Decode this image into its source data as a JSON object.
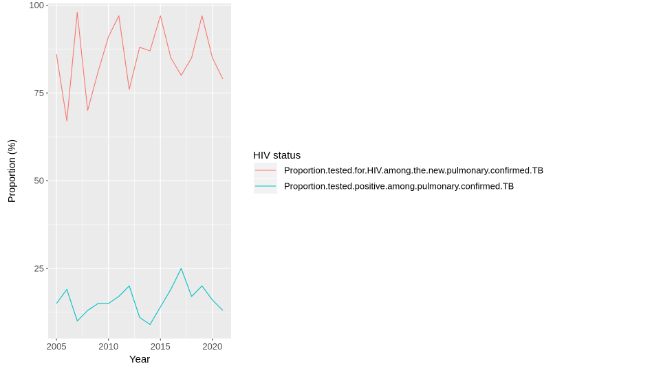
{
  "chart_data": {
    "type": "line",
    "xlabel": "Year",
    "ylabel": "Proportion (%)",
    "x": [
      2005,
      2006,
      2007,
      2008,
      2009,
      2010,
      2011,
      2012,
      2013,
      2014,
      2015,
      2016,
      2017,
      2018,
      2019,
      2020,
      2021
    ],
    "xlim": [
      2004.2,
      2021.8
    ],
    "ylim": [
      5,
      100.5
    ],
    "x_ticks": [
      2005,
      2010,
      2015,
      2020
    ],
    "y_ticks": [
      25,
      50,
      75,
      100
    ],
    "grid": true,
    "legend_title": "HIV status",
    "legend_position": "right",
    "series": [
      {
        "name": "Proportion.tested.for.HIV.among.the.new.pulmonary.confirmed.TB",
        "color": "#F8766D",
        "values": [
          86,
          67,
          98,
          70,
          81,
          91,
          97,
          76,
          88,
          87,
          97,
          85,
          80,
          85,
          97,
          85,
          79
        ]
      },
      {
        "name": "Proportion.tested.positive.among.pulmonary.confirmed.TB",
        "color": "#00BFC4",
        "values": [
          15,
          19,
          10,
          13,
          15,
          15,
          17,
          20,
          11,
          9,
          14,
          19,
          25,
          17,
          20,
          16,
          13
        ]
      }
    ]
  }
}
